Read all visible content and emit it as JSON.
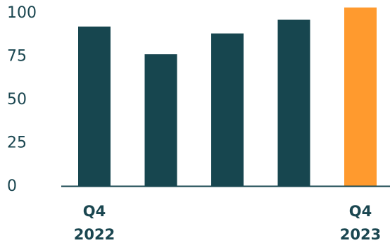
{
  "chart_data": {
    "type": "bar",
    "categories": [
      "Q4 2022",
      "",
      "",
      "",
      "Q4 2023"
    ],
    "x_tick_labels": [
      [
        "Q4",
        "2022"
      ],
      [],
      [],
      [],
      [
        "Q4",
        "2023"
      ]
    ],
    "values": [
      92,
      76,
      88,
      96,
      103
    ],
    "bar_colors": [
      "#17464f",
      "#17464f",
      "#17464f",
      "#17464f",
      "#ff9a2e"
    ],
    "yticks": [
      0,
      25,
      50,
      75,
      100
    ],
    "ylim": [
      0,
      103
    ],
    "grid": false,
    "axis_color": "#17464f",
    "text_color": "#1a4650"
  }
}
